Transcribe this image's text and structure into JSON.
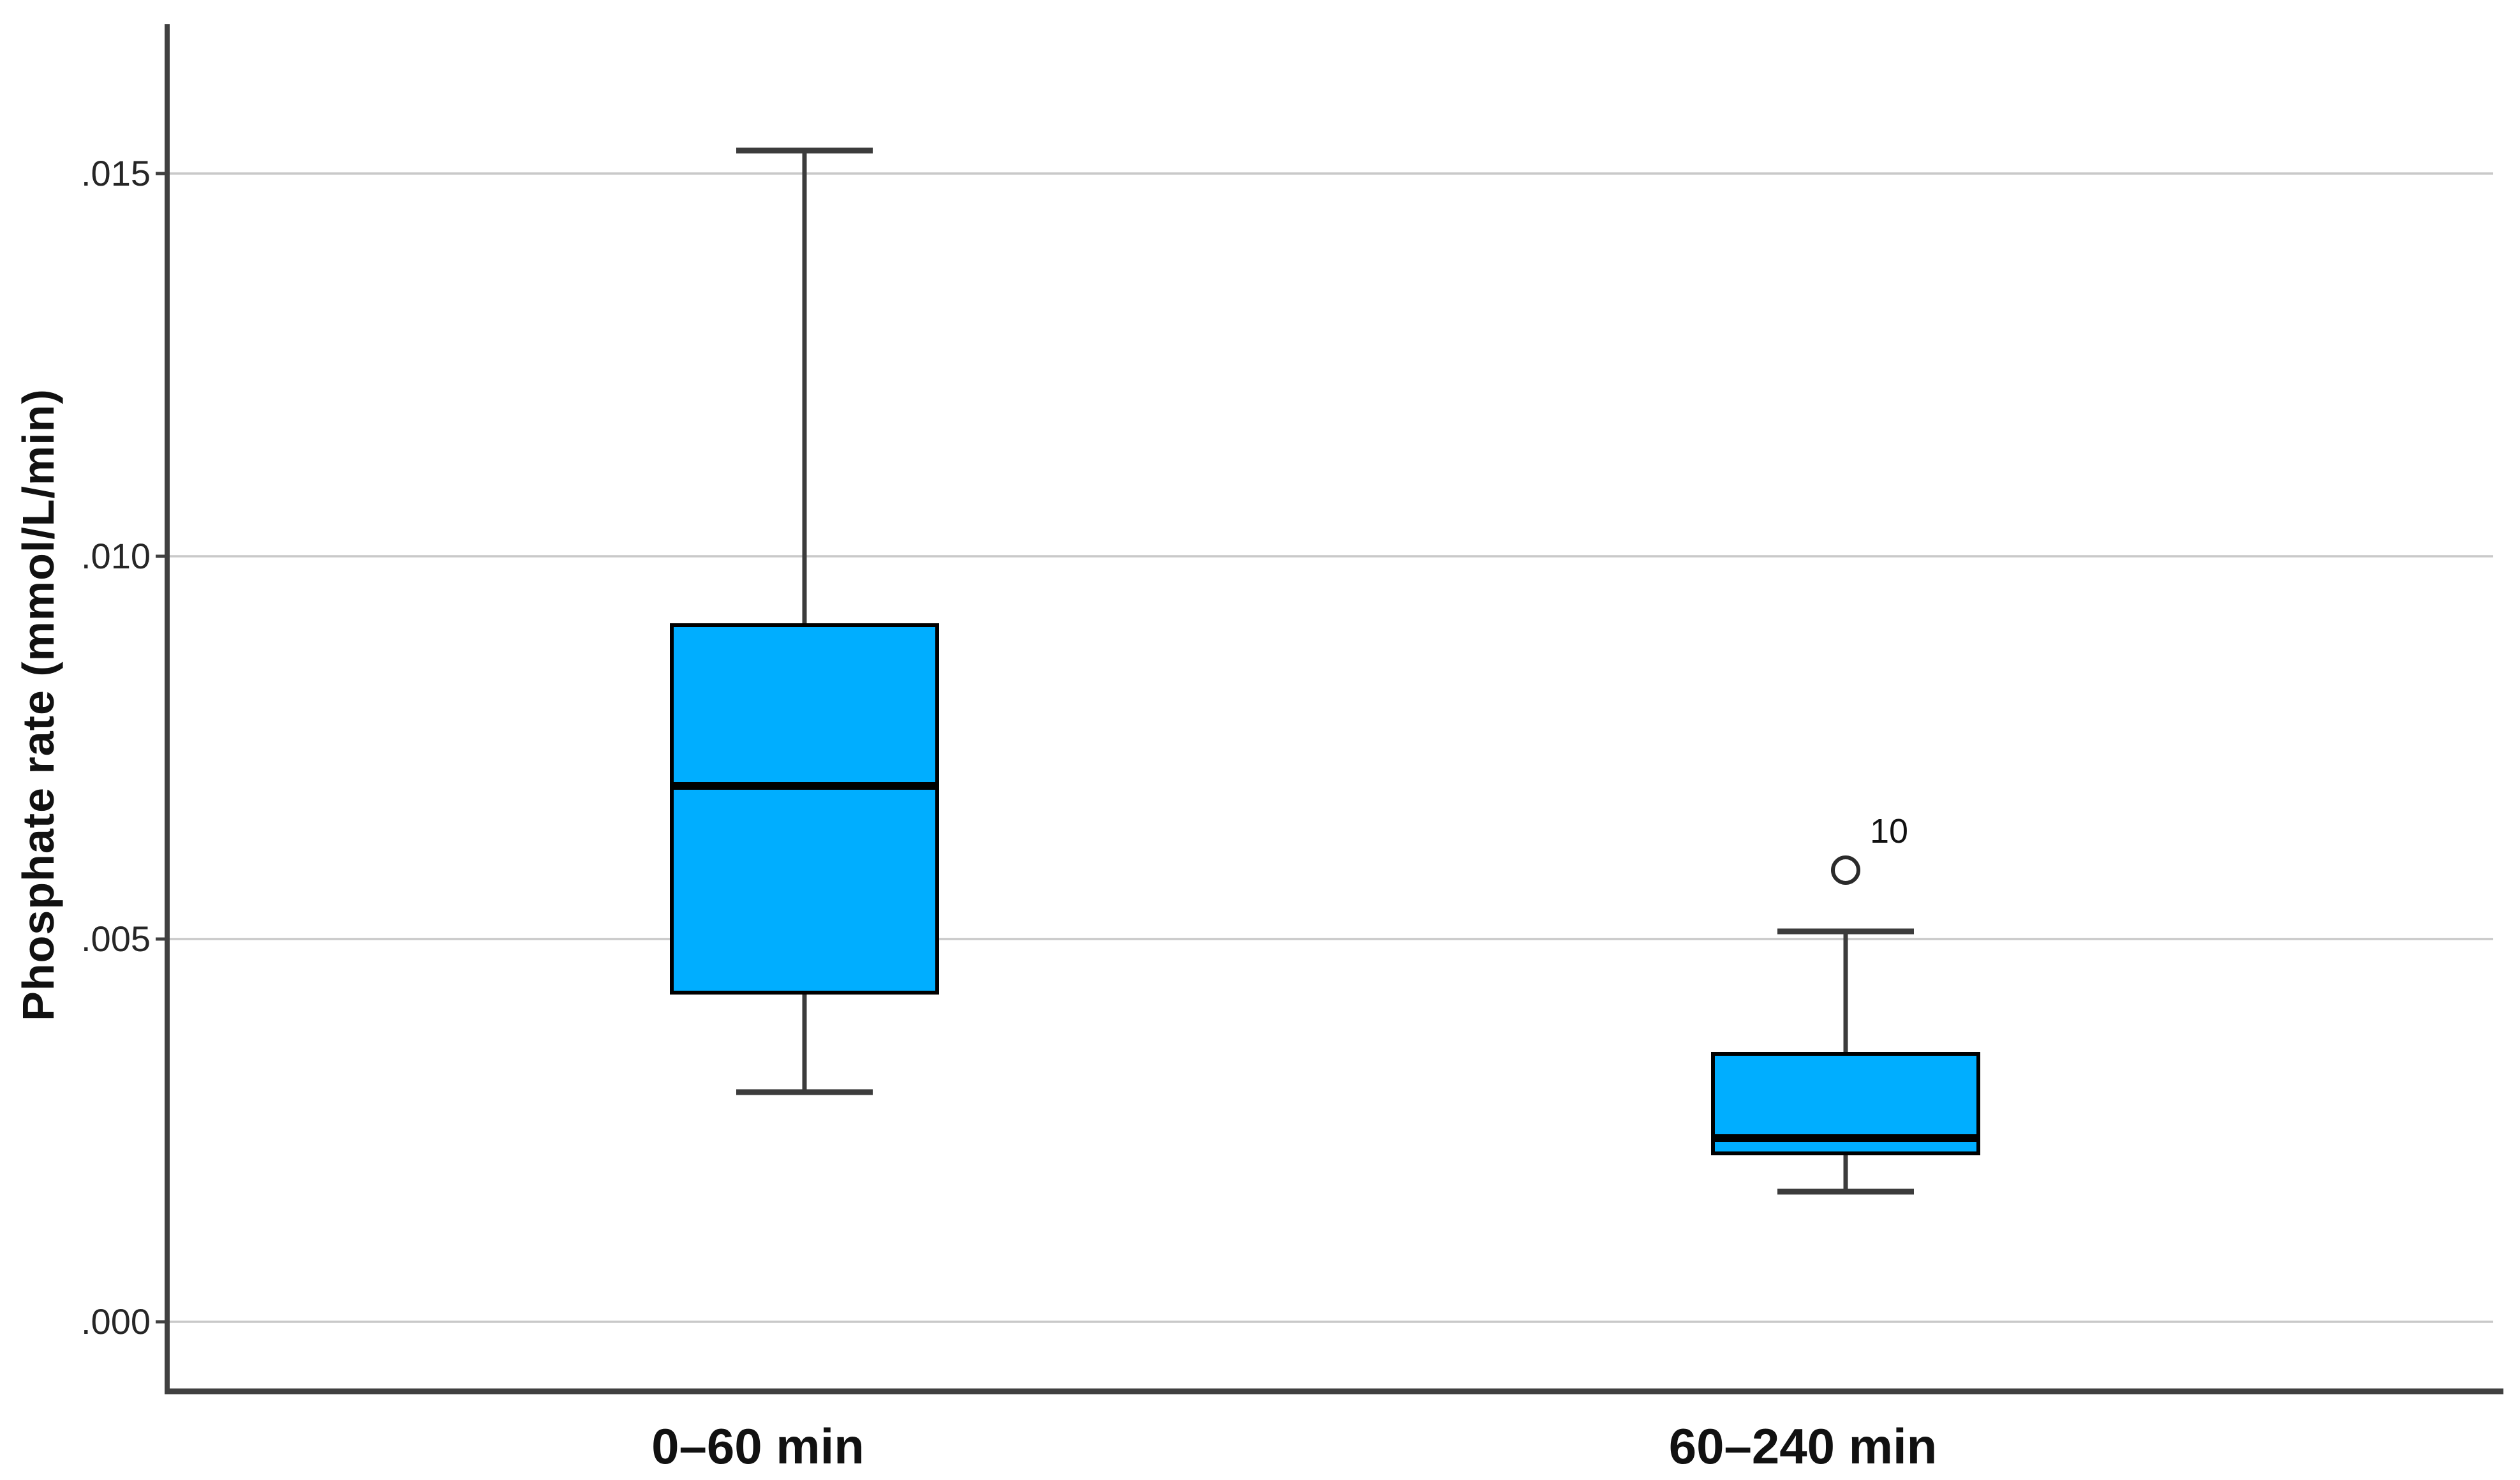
{
  "figure": {
    "background": "#ffffff",
    "y_axis_title": "Phosphate rate (mmol/L/min)"
  },
  "chart_data": {
    "type": "boxplot",
    "title": "",
    "xlabel": "",
    "ylabel": "Phosphate rate (mmol/L/min)",
    "categories": [
      "0–60 min",
      "60–240 min"
    ],
    "y_ticks": [
      {
        "value": 0.0,
        "label": ".000"
      },
      {
        "value": 0.005,
        "label": ".005"
      },
      {
        "value": 0.01,
        "label": ".010"
      },
      {
        "value": 0.015,
        "label": ".015"
      }
    ],
    "ylim": [
      -0.0009,
      0.0169
    ],
    "grid": "horizontal-gridlines-on",
    "legend": "none",
    "series": [
      {
        "category": "0–60 min",
        "whisker_low": 0.003,
        "q1": 0.0043,
        "median": 0.007,
        "q3": 0.0091,
        "whisker_high": 0.0153,
        "outliers": []
      },
      {
        "category": "60–240 min",
        "whisker_low": 0.0017,
        "q1": 0.0022,
        "median": 0.0024,
        "q3": 0.0035,
        "whisker_high": 0.0051,
        "outliers": [
          {
            "value": 0.0059,
            "label": "10"
          }
        ]
      }
    ],
    "colors": {
      "box_fill": "#00AEFF",
      "box_border": "#000000",
      "median_line": "#000000",
      "whisker": "#3C3C3C",
      "gridline": "#C9C9C9",
      "axis_line": "#404040",
      "text": "#111111"
    }
  }
}
